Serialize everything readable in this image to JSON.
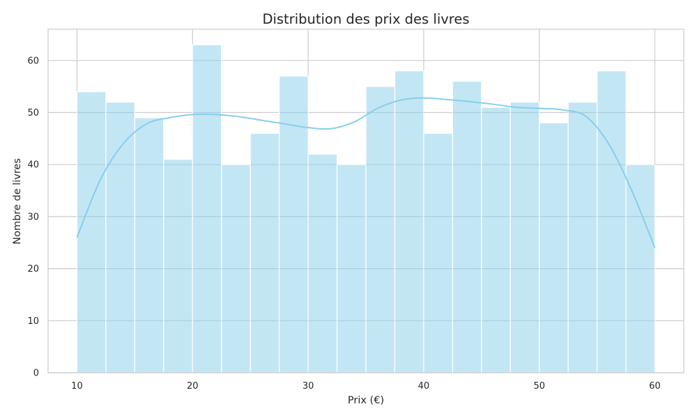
{
  "chart_data": {
    "type": "bar",
    "title": "Distribution des prix des livres",
    "xlabel": "Prix (€)",
    "ylabel": "Nombre de livres",
    "xlim": [
      7.5,
      62.5
    ],
    "ylim": [
      0,
      66
    ],
    "xticks": [
      10,
      20,
      30,
      40,
      50,
      60
    ],
    "yticks": [
      0,
      10,
      20,
      30,
      40,
      50,
      60
    ],
    "grid": true,
    "legend": "none",
    "bins": [
      {
        "x0": 10.0,
        "x1": 12.5,
        "count": 54
      },
      {
        "x0": 12.5,
        "x1": 15.0,
        "count": 52
      },
      {
        "x0": 15.0,
        "x1": 17.5,
        "count": 49
      },
      {
        "x0": 17.5,
        "x1": 20.0,
        "count": 41
      },
      {
        "x0": 20.0,
        "x1": 22.5,
        "count": 63
      },
      {
        "x0": 22.5,
        "x1": 25.0,
        "count": 40
      },
      {
        "x0": 25.0,
        "x1": 27.5,
        "count": 46
      },
      {
        "x0": 27.5,
        "x1": 30.0,
        "count": 57
      },
      {
        "x0": 30.0,
        "x1": 32.5,
        "count": 42
      },
      {
        "x0": 32.5,
        "x1": 35.0,
        "count": 40
      },
      {
        "x0": 35.0,
        "x1": 37.5,
        "count": 55
      },
      {
        "x0": 37.5,
        "x1": 40.0,
        "count": 58
      },
      {
        "x0": 40.0,
        "x1": 42.5,
        "count": 46
      },
      {
        "x0": 42.5,
        "x1": 45.0,
        "count": 56
      },
      {
        "x0": 45.0,
        "x1": 47.5,
        "count": 51
      },
      {
        "x0": 47.5,
        "x1": 50.0,
        "count": 52
      },
      {
        "x0": 50.0,
        "x1": 52.5,
        "count": 48
      },
      {
        "x0": 52.5,
        "x1": 55.0,
        "count": 52
      },
      {
        "x0": 55.0,
        "x1": 57.5,
        "count": 58
      },
      {
        "x0": 57.5,
        "x1": 60.0,
        "count": 40
      }
    ],
    "kde": {
      "x": [
        10,
        12,
        14,
        16,
        18,
        20,
        22,
        24,
        26,
        28,
        30,
        32,
        34,
        36,
        38,
        40,
        42,
        44,
        46,
        48,
        50,
        52,
        54,
        56,
        58,
        60
      ],
      "y": [
        26,
        37,
        44,
        47.8,
        49,
        49.6,
        49.6,
        49.2,
        48.5,
        47.8,
        47.1,
        46.9,
        48.2,
        50.8,
        52.4,
        52.8,
        52.5,
        52.1,
        51.6,
        51.0,
        50.8,
        50.5,
        49.3,
        44,
        35,
        24
      ]
    },
    "colors": {
      "bar_fill": "#87ceeb",
      "bar_opacity": 0.5,
      "kde_line": "#87ceeb",
      "grid": "#cccccc",
      "axes_edge": "#cccccc"
    }
  }
}
